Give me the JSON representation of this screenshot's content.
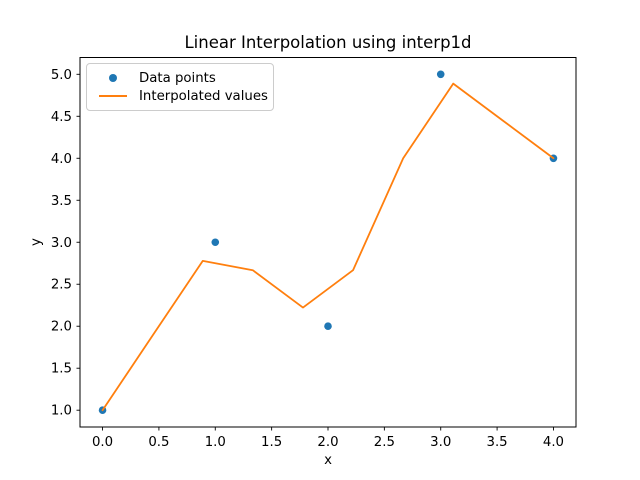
{
  "chart_data": {
    "type": "scatter+line",
    "title": "Linear Interpolation using interp1d",
    "xlabel": "x",
    "ylabel": "y",
    "xlim": [
      -0.2,
      4.2
    ],
    "ylim": [
      0.8,
      5.2
    ],
    "grid": false,
    "legend_position": "upper left",
    "xticks": {
      "values": [
        0,
        0.5,
        1,
        1.5,
        2,
        2.5,
        3,
        3.5,
        4
      ],
      "labels": [
        "0.0",
        "0.5",
        "1.0",
        "1.5",
        "2.0",
        "2.5",
        "3.0",
        "3.5",
        "4.0"
      ]
    },
    "yticks": {
      "values": [
        1,
        1.5,
        2,
        2.5,
        3,
        3.5,
        4,
        4.5,
        5
      ],
      "labels": [
        "1.0",
        "1.5",
        "2.0",
        "2.5",
        "3.0",
        "3.5",
        "4.0",
        "4.5",
        "5.0"
      ]
    },
    "series": [
      {
        "name": "Data points",
        "type": "scatter",
        "color": "#1f77b4",
        "x": [
          0,
          1,
          2,
          3,
          4
        ],
        "y": [
          1,
          3,
          2,
          5,
          4
        ]
      },
      {
        "name": "Interpolated values",
        "type": "line",
        "color": "#ff7f0e",
        "x": [
          0,
          0.444,
          0.889,
          1.333,
          1.778,
          2.222,
          2.667,
          3.111,
          3.556,
          4.0
        ],
        "y": [
          1.0,
          1.889,
          2.778,
          2.667,
          2.222,
          2.667,
          4.0,
          4.889,
          4.444,
          4.0
        ]
      }
    ]
  }
}
